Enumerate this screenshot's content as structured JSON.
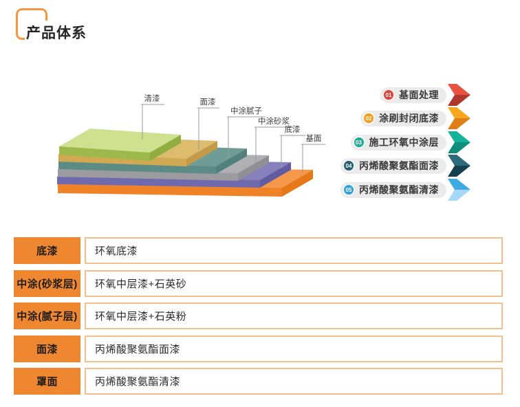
{
  "page_title": "产品体系",
  "colors": {
    "brand_orange": "#ee8730",
    "title_frame": "#f6953f",
    "table_border": "#f7bd8a",
    "pill_background": "#ebebeb"
  },
  "diagram": {
    "layers": [
      {
        "label": "清漆",
        "top": "#cfe08e",
        "front": "#9db84b",
        "side": "#8fae3f"
      },
      {
        "label": "面漆",
        "top": "#ddbc6d",
        "front": "#d0a952",
        "side": "#c29a49"
      },
      {
        "label": "中涂腻子",
        "top": "#6f9c97",
        "front": "#5d8c87",
        "side": "#52807c"
      },
      {
        "label": "中涂砂浆",
        "top": "#b0b0b4",
        "front": "#9c9ca0",
        "side": "#8f8f94"
      },
      {
        "label": "底漆",
        "top": "#8680bc",
        "front": "#6f6aae",
        "side": "#615ca2"
      },
      {
        "label": "基面",
        "top": "#f5984b",
        "front": "#f08227",
        "side": "#e67817"
      }
    ]
  },
  "process_steps": [
    {
      "num": "01",
      "label": "基面处理",
      "badge": "#d8453a",
      "arrow_top": "#e8503f",
      "arrow_bottom": "#b0372b"
    },
    {
      "num": "02",
      "label": "涂刷封闭底漆",
      "badge": "#f09e1e",
      "arrow_top": "#f8a61f",
      "arrow_bottom": "#de7f19"
    },
    {
      "num": "03",
      "label": "施工环氧中涂层",
      "badge": "#25a892",
      "arrow_top": "#14b29a",
      "arrow_bottom": "#0d8e7a"
    },
    {
      "num": "04",
      "label": "丙烯酸聚氨酯面漆",
      "badge": "#265d6d",
      "arrow_top": "#2d6a7c",
      "arrow_bottom": "#14404f"
    },
    {
      "num": "05",
      "label": "丙烯酸聚氨酯清漆",
      "badge": "#369fd9",
      "arrow_top": "#3fa9e3",
      "arrow_bottom": "#a6d9f8"
    }
  ],
  "system_table": {
    "rows": [
      {
        "label": "底漆",
        "value": "环氧底漆"
      },
      {
        "label": "中涂(砂浆层)",
        "value": "环氧中层漆+石英砂"
      },
      {
        "label": "中涂(腻子层)",
        "value": "环氧中层漆+石英粉"
      },
      {
        "label": "面漆",
        "value": "丙烯酸聚氨酯面漆"
      },
      {
        "label": "罩面",
        "value": "丙烯酸聚氨酯清漆"
      }
    ]
  }
}
